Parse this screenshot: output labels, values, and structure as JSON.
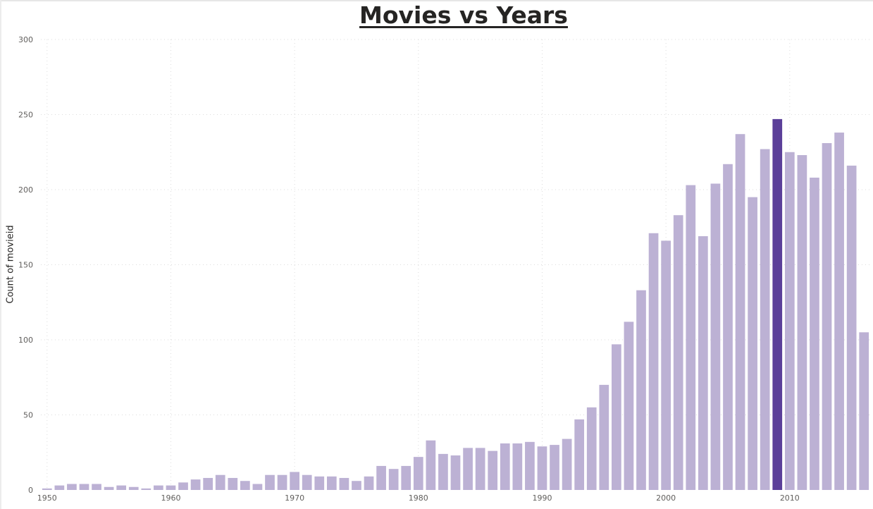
{
  "chart_data": {
    "type": "bar",
    "title": "Movies vs Years",
    "xlabel": "",
    "ylabel": "Count of movieid",
    "x": [
      1950,
      1951,
      1952,
      1953,
      1954,
      1955,
      1956,
      1957,
      1958,
      1959,
      1960,
      1961,
      1962,
      1963,
      1964,
      1965,
      1966,
      1967,
      1968,
      1969,
      1970,
      1971,
      1972,
      1973,
      1974,
      1975,
      1976,
      1977,
      1978,
      1979,
      1980,
      1981,
      1982,
      1983,
      1984,
      1985,
      1986,
      1987,
      1988,
      1989,
      1990,
      1991,
      1992,
      1993,
      1994,
      1995,
      1996,
      1997,
      1998,
      1999,
      2000,
      2001,
      2002,
      2003,
      2004,
      2005,
      2006,
      2007,
      2008,
      2009,
      2010,
      2011,
      2012,
      2013,
      2014,
      2015,
      2016
    ],
    "values": [
      1,
      3,
      4,
      4,
      4,
      2,
      3,
      2,
      1,
      3,
      3,
      5,
      7,
      8,
      10,
      8,
      6,
      4,
      10,
      10,
      12,
      10,
      9,
      9,
      8,
      6,
      9,
      16,
      14,
      16,
      22,
      33,
      24,
      23,
      28,
      28,
      26,
      31,
      31,
      32,
      29,
      30,
      34,
      47,
      55,
      70,
      97,
      112,
      133,
      171,
      166,
      183,
      203,
      169,
      204,
      217,
      237,
      195,
      227,
      247,
      225,
      223,
      208,
      231,
      238,
      216,
      105
    ],
    "highlight_x": 2009,
    "ylim": [
      0,
      300
    ],
    "yticks": [
      0,
      50,
      100,
      150,
      200,
      250,
      300
    ],
    "xticks": [
      1950,
      1960,
      1970,
      1980,
      1990,
      2000,
      2010
    ],
    "xlim": [
      1949.5,
      2016.5
    ],
    "grid": true,
    "legend": "none",
    "colors": {
      "bar": "#bcb1d4",
      "highlight": "#5b3f99",
      "grid": "#dcdcdc",
      "tick": "#605e5c",
      "title": "#252423"
    }
  }
}
